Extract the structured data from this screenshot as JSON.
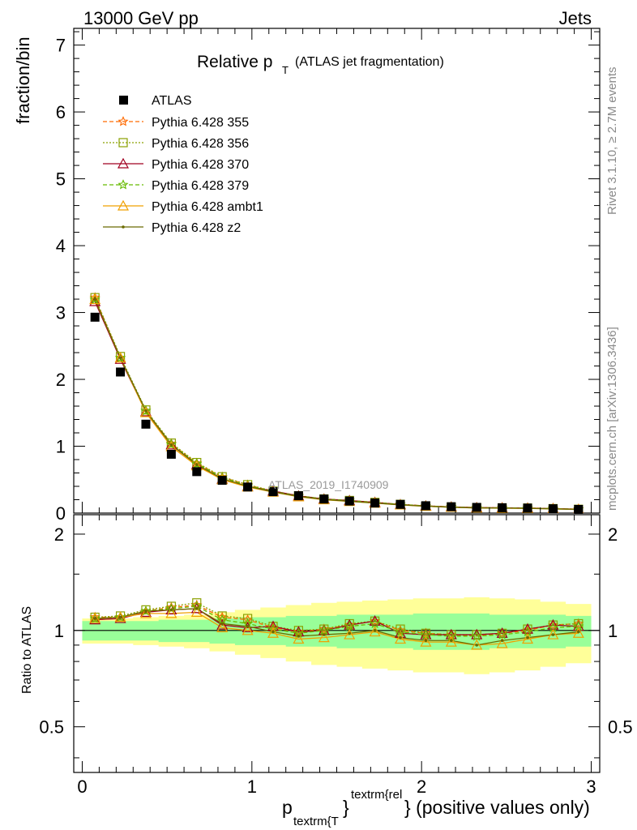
{
  "header": {
    "energy_label": "13000 GeV pp",
    "process_label": "Jets"
  },
  "side_labels": {
    "rivet": "Rivet 3.1.10, ≥ 2.7M events",
    "mcplots": "mcplots.cern.ch [arXiv:1306.3436]"
  },
  "chart_data": {
    "type": "scatter",
    "title_main": "Relative p",
    "title_sub": "T",
    "title_suffix": "(ATLAS jet fragmentation)",
    "watermark": "ATLAS_2019_I1740909",
    "ylabel": "fraction/bin",
    "ratio_ylabel": "Ratio to ATLAS",
    "xlabel": {
      "p": "p",
      "sub": "textrm{T",
      "brace": "}",
      "sup": "textrm{rel",
      "tail": "} (positive values only)"
    },
    "xlim": [
      -0.05,
      3.05
    ],
    "ylim": [
      0,
      7.25
    ],
    "ratio_ylim": [
      0.36,
      2.3
    ],
    "ratio_scale": "log",
    "x_ticks": [
      "0",
      "1",
      "2",
      "3"
    ],
    "y_ticks": [
      "0",
      "1",
      "2",
      "3",
      "4",
      "5",
      "6",
      "7"
    ],
    "ratio_ticks": [
      "0.5",
      "1",
      "2"
    ],
    "x": [
      0.075,
      0.225,
      0.375,
      0.525,
      0.675,
      0.825,
      0.975,
      1.125,
      1.275,
      1.425,
      1.575,
      1.725,
      1.875,
      2.025,
      2.175,
      2.325,
      2.475,
      2.625,
      2.775,
      2.925
    ],
    "data": {
      "name": "ATLAS",
      "values": [
        2.93,
        2.11,
        1.33,
        0.88,
        0.62,
        0.49,
        0.39,
        0.32,
        0.26,
        0.21,
        0.18,
        0.15,
        0.13,
        0.11,
        0.095,
        0.085,
        0.08,
        0.075,
        0.065,
        0.055
      ],
      "band_inner": [
        0.07,
        0.07,
        0.07,
        0.08,
        0.08,
        0.09,
        0.1,
        0.1,
        0.11,
        0.11,
        0.12,
        0.12,
        0.12,
        0.13,
        0.13,
        0.13,
        0.12,
        0.12,
        0.12,
        0.11
      ],
      "band_outer": [
        0.09,
        0.09,
        0.1,
        0.11,
        0.12,
        0.14,
        0.16,
        0.18,
        0.2,
        0.22,
        0.23,
        0.24,
        0.25,
        0.26,
        0.26,
        0.27,
        0.26,
        0.25,
        0.23,
        0.21
      ]
    },
    "series": [
      {
        "name": "Pythia 6.428 355",
        "color": "#ff6a00",
        "dash": "5,3",
        "marker": "star",
        "ratio": [
          1.1,
          1.1,
          1.15,
          1.18,
          1.2,
          1.1,
          1.08,
          1.02,
          0.99,
          1.01,
          1.04,
          1.07,
          1.0,
          0.98,
          0.97,
          0.96,
          0.98,
          1.0,
          1.04,
          1.05
        ]
      },
      {
        "name": "Pythia 6.428 356",
        "color": "#8aa000",
        "dash": "2,2",
        "marker": "square",
        "ratio": [
          1.1,
          1.11,
          1.16,
          1.19,
          1.22,
          1.11,
          1.09,
          1.03,
          1.0,
          1.01,
          1.05,
          1.07,
          1.01,
          0.98,
          0.97,
          0.97,
          0.98,
          1.01,
          1.04,
          1.05
        ]
      },
      {
        "name": "Pythia 6.428 370",
        "color": "#a00020",
        "dash": "",
        "marker": "triangle",
        "ratio": [
          1.08,
          1.09,
          1.14,
          1.16,
          1.17,
          1.04,
          1.02,
          1.03,
          0.99,
          1.0,
          1.04,
          1.07,
          0.98,
          0.97,
          0.97,
          0.97,
          0.98,
          1.01,
          1.04,
          1.03
        ]
      },
      {
        "name": "Pythia 6.428 379",
        "color": "#66bb00",
        "dash": "5,3",
        "marker": "star",
        "ratio": [
          1.09,
          1.1,
          1.15,
          1.17,
          1.19,
          1.08,
          1.05,
          1.01,
          0.98,
          1.0,
          1.03,
          1.05,
          0.99,
          0.97,
          0.96,
          0.96,
          0.97,
          0.99,
          1.02,
          1.03
        ]
      },
      {
        "name": "Pythia 6.428 ambt1",
        "color": "#f0a000",
        "dash": "",
        "marker": "triangle",
        "ratio": [
          1.09,
          1.1,
          1.13,
          1.13,
          1.14,
          1.02,
          1.0,
          0.98,
          0.94,
          0.95,
          0.97,
          0.99,
          0.94,
          0.92,
          0.92,
          0.9,
          0.91,
          0.94,
          0.97,
          0.98
        ]
      },
      {
        "name": "Pythia 6.428 z2",
        "color": "#6b6b00",
        "dash": "",
        "marker": "dot",
        "ratio": [
          1.09,
          1.1,
          1.15,
          1.16,
          1.17,
          1.05,
          1.03,
          0.99,
          0.96,
          0.97,
          0.98,
          1.0,
          0.95,
          0.93,
          0.93,
          0.9,
          0.93,
          0.95,
          0.97,
          0.99
        ]
      }
    ],
    "legend_position": "top-left"
  }
}
